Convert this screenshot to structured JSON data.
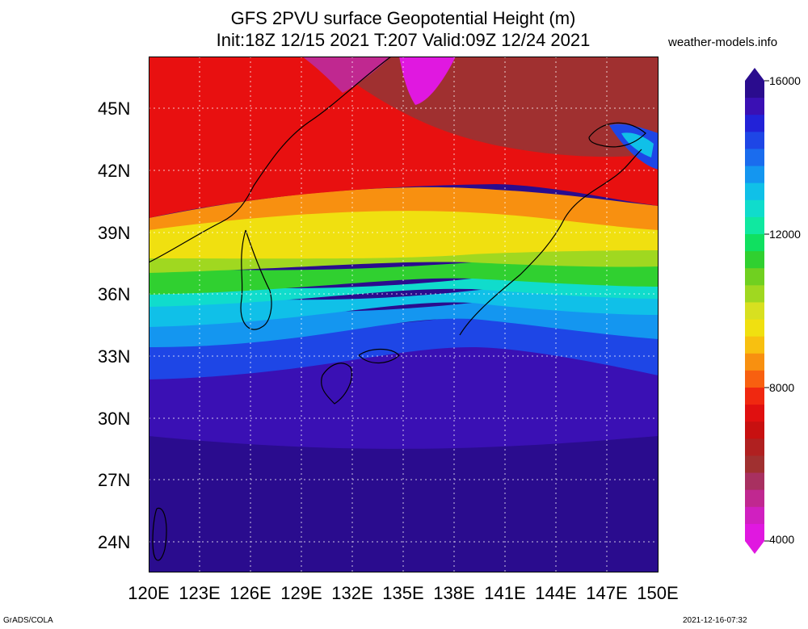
{
  "header": {
    "title": "GFS 2PVU surface Geopotential Height (m)",
    "subtitle": "Init:18Z 12/15 2021 T:207 Valid:09Z 12/24 2021",
    "site": "weather-models.info"
  },
  "map": {
    "region": "Japan / East Asia",
    "lon_range": [
      120,
      150
    ],
    "lat_range": [
      22.5,
      47.5
    ],
    "grid": true,
    "lat_labels": [
      "45N",
      "42N",
      "39N",
      "36N",
      "33N",
      "30N",
      "27N",
      "24N"
    ],
    "lon_labels": [
      "120E",
      "123E",
      "126E",
      "129E",
      "132E",
      "135E",
      "138E",
      "141E",
      "144E",
      "147E",
      "150E"
    ]
  },
  "colorbar": {
    "labels": [
      "16000",
      "12000",
      "8000",
      "4000"
    ],
    "colors_top_to_bottom": [
      "#2a0c8e",
      "#3a10b4",
      "#2222d8",
      "#1e46e6",
      "#1a6cee",
      "#1496f0",
      "#10c0e8",
      "#10dccc",
      "#10e8a0",
      "#10e060",
      "#30d030",
      "#70d020",
      "#a0d820",
      "#d8e020",
      "#f0e010",
      "#f8c010",
      "#f89010",
      "#f86010",
      "#f02810",
      "#e01010",
      "#c81010",
      "#b02020",
      "#a03030",
      "#a83060",
      "#c02890",
      "#d020c0",
      "#e018e0"
    ],
    "palette": {
      "magenta": "#e018e0",
      "red": "#e81010",
      "orange": "#f89010",
      "yellow": "#f0e010",
      "green": "#30d030",
      "cyan": "#10c0e8",
      "blue": "#1e46e6",
      "dark_blue": "#3a10b4",
      "purple": "#2a0c8e"
    }
  },
  "footer": {
    "left": "GrADS/COLA",
    "right": "2021-12-16-07:32"
  }
}
